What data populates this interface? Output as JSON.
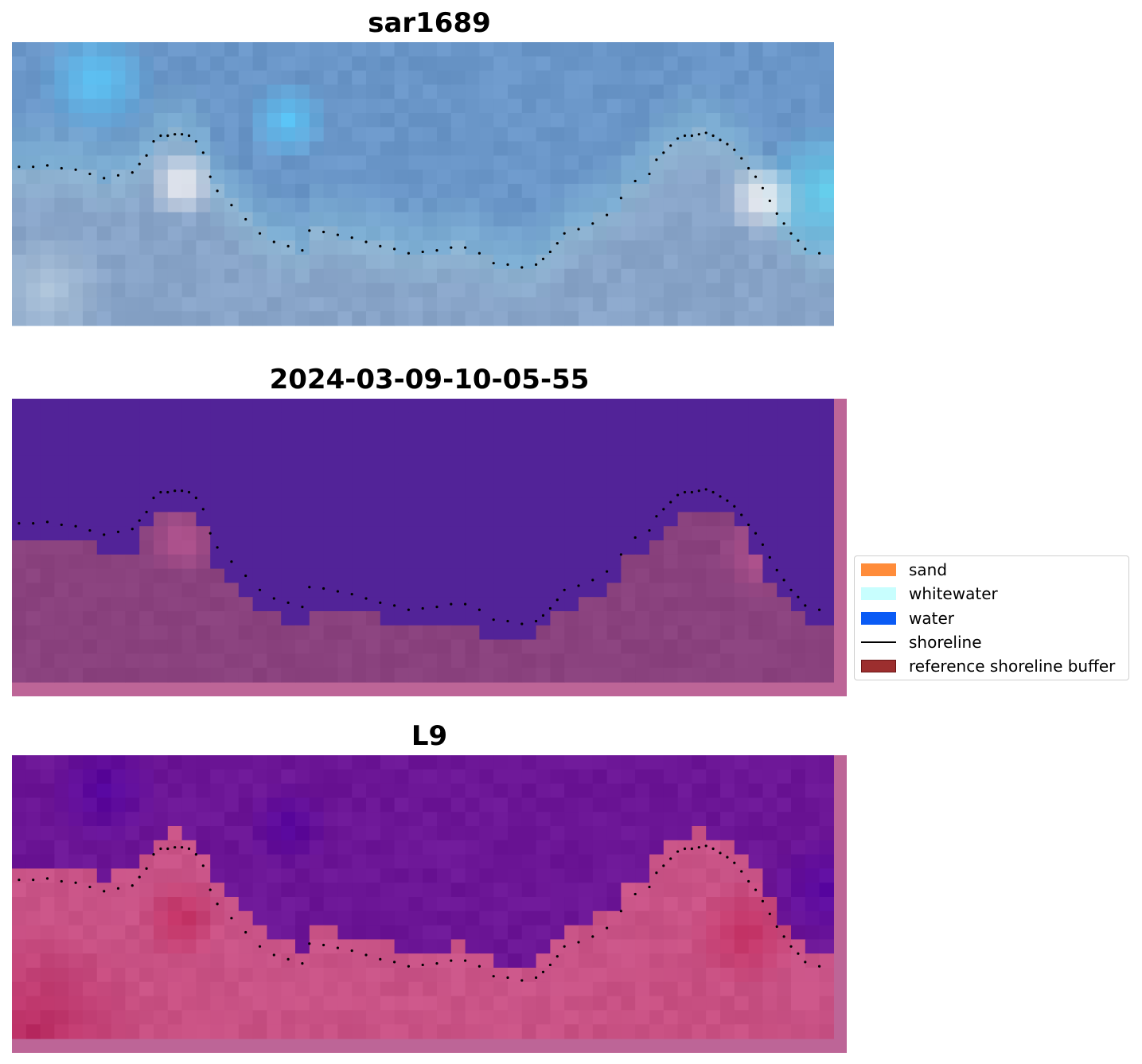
{
  "chart_data": [
    {
      "type": "heatmap",
      "title": "sar1689",
      "image": "rgb-satellite",
      "shoreline_x": [
        0.5,
        1.5,
        2.5,
        3.5,
        4.5,
        5.5,
        6.5,
        7.5,
        8.5,
        9,
        9.5,
        10,
        10.5,
        11,
        11.5,
        12,
        12.5,
        13,
        13.5,
        14,
        14.5,
        15.5,
        16.5,
        17.5,
        18.5,
        19.5,
        20.5,
        21,
        22,
        23,
        24,
        25,
        26,
        27,
        28,
        29,
        30,
        31,
        32,
        33,
        34,
        35,
        36,
        37,
        37.5,
        38,
        38.5,
        39,
        40,
        41,
        42,
        43,
        44,
        45,
        45.5,
        46,
        46.5,
        47,
        47.5,
        48,
        48.5,
        49,
        49.5,
        50,
        50.5,
        51,
        51.5,
        52,
        52.5,
        53,
        53.5,
        54,
        54.5,
        55,
        55.5,
        56,
        57
      ],
      "shoreline_y": [
        8.8,
        8.8,
        8.7,
        8.9,
        9.0,
        9.3,
        9.6,
        9.4,
        9.2,
        8.6,
        8.0,
        7.0,
        6.6,
        6.6,
        6.5,
        6.5,
        6.6,
        7.0,
        7.8,
        9.5,
        10.5,
        11.5,
        12.5,
        13.5,
        14.1,
        14.4,
        14.7,
        13.3,
        13.4,
        13.6,
        13.8,
        14.1,
        14.4,
        14.6,
        14.9,
        14.8,
        14.7,
        14.5,
        14.5,
        14.9,
        15.6,
        15.7,
        15.9,
        15.7,
        15.3,
        14.8,
        14.2,
        13.5,
        13.2,
        12.8,
        12.2,
        11.0,
        9.8,
        9.3,
        8.3,
        7.8,
        7.3,
        6.8,
        6.6,
        6.6,
        6.5,
        6.4,
        6.6,
        6.9,
        7.2,
        7.6,
        8.2,
        8.9,
        9.5,
        10.3,
        11.2,
        12.1,
        12.8,
        13.5,
        14.0,
        14.6,
        14.9
      ]
    },
    {
      "type": "heatmap",
      "title": "2024-03-09-10-05-55",
      "image": "classification",
      "shoreline": "same"
    },
    {
      "type": "heatmap",
      "title": "L9",
      "image": "index",
      "shoreline": "same"
    }
  ],
  "legend": {
    "items": [
      {
        "label": "sand",
        "kind": "patch",
        "color": "#ff8c3a"
      },
      {
        "label": "whitewater",
        "kind": "patch",
        "color": "#c8fefe"
      },
      {
        "label": "water",
        "kind": "patch",
        "color": "#0a5bf5"
      },
      {
        "label": "shoreline",
        "kind": "line",
        "color": "#000000"
      },
      {
        "label": "reference shoreline buffer",
        "kind": "patch",
        "color": "#9c2e2e"
      }
    ]
  }
}
